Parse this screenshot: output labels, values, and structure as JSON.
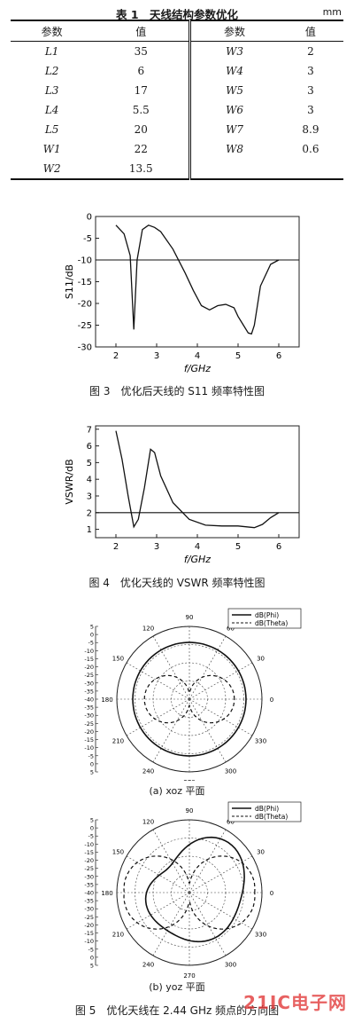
{
  "table": {
    "title": "表 1　天线结构参数优化",
    "unit": "mm",
    "headers": [
      "参数",
      "值",
      "参数",
      "值"
    ],
    "rows": [
      {
        "p1": "L1",
        "v1": "35",
        "p2": "W3",
        "v2": "2"
      },
      {
        "p1": "L2",
        "v1": "6",
        "p2": "W4",
        "v2": "3"
      },
      {
        "p1": "L3",
        "v1": "17",
        "p2": "W5",
        "v2": "3"
      },
      {
        "p1": "L4",
        "v1": "5.5",
        "p2": "W6",
        "v2": "3"
      },
      {
        "p1": "L5",
        "v1": "20",
        "p2": "W7",
        "v2": "8.9"
      },
      {
        "p1": "W1",
        "v1": "22",
        "p2": "W8",
        "v2": "0.6"
      },
      {
        "p1": "W2",
        "v1": "13.5",
        "p2": "",
        "v2": ""
      }
    ]
  },
  "figure3": {
    "caption": "图 3　优化后天线的 S11 频率特性图"
  },
  "figure4": {
    "caption": "图 4　优化天线的 VSWR 频率特性图"
  },
  "figure5": {
    "caption": "图 5　优化天线在 2.44 GHz 频点的方向图",
    "sub_a": "(a) xoz 平面",
    "sub_b": "(b) yoz 平面"
  },
  "watermark": "21IC电子网",
  "chart_data": [
    {
      "type": "line",
      "xlabel": "f/GHz",
      "ylabel": "S11/dB",
      "xlim": [
        1.5,
        6.5
      ],
      "ylim": [
        -30,
        0
      ],
      "xticks": [
        2,
        3,
        4,
        5,
        6
      ],
      "yticks": [
        0,
        -5,
        -10,
        -15,
        -20,
        -25,
        -30
      ],
      "series": [
        {
          "x": [
            2.0,
            2.2,
            2.35,
            2.44,
            2.52,
            2.65,
            2.8,
            2.95,
            3.1,
            3.4,
            3.7,
            3.9,
            4.1,
            4.3,
            4.5,
            4.7,
            4.9,
            5.0,
            5.1,
            5.25,
            5.33,
            5.4,
            5.55,
            5.8,
            6.0
          ],
          "y": [
            -2,
            -4,
            -9,
            -26,
            -10,
            -3,
            -2,
            -2.5,
            -3.5,
            -7.5,
            -13,
            -17,
            -20.5,
            -21.5,
            -20.5,
            -20.2,
            -21,
            -23,
            -24.5,
            -26.8,
            -27,
            -25,
            -16,
            -11,
            -10
          ]
        },
        {
          "x": [
            1.5,
            6.5
          ],
          "y": [
            -10,
            -10
          ]
        }
      ]
    },
    {
      "type": "line",
      "xlabel": "f/GHz",
      "ylabel": "VSWR/dB",
      "xlim": [
        1.5,
        6.5
      ],
      "ylim": [
        0.5,
        7.2
      ],
      "xticks": [
        2,
        3,
        4,
        5,
        6
      ],
      "yticks": [
        1,
        2,
        3,
        4,
        5,
        6,
        7
      ],
      "series": [
        {
          "x": [
            2.0,
            2.15,
            2.3,
            2.44,
            2.55,
            2.7,
            2.85,
            2.95,
            3.1,
            3.4,
            3.8,
            4.2,
            4.6,
            5.0,
            5.4,
            5.6,
            5.8,
            6.0
          ],
          "y": [
            6.9,
            5.2,
            3.0,
            1.15,
            1.6,
            3.5,
            5.8,
            5.6,
            4.2,
            2.6,
            1.6,
            1.25,
            1.2,
            1.2,
            1.1,
            1.3,
            1.7,
            2.0
          ]
        },
        {
          "x": [
            1.5,
            6.5
          ],
          "y": [
            2,
            2
          ]
        }
      ]
    },
    {
      "type": "polar",
      "r_ticks": [
        5,
        0,
        -5,
        -10,
        -15,
        -20,
        -25,
        -30,
        -35,
        -40,
        -35,
        -30,
        -25,
        -20,
        -15,
        -10,
        -5,
        0,
        5
      ],
      "angle_ticks": [
        0,
        30,
        60,
        90,
        120,
        150,
        180,
        210,
        240,
        270,
        300,
        330
      ],
      "legend": [
        "dB(Phi)",
        "dB(Theta)"
      ],
      "legend_position": "top-right"
    },
    {
      "type": "polar",
      "r_ticks": [
        5,
        0,
        -5,
        -10,
        -15,
        -20,
        -25,
        -30,
        -35,
        -40,
        -35,
        -30,
        -25,
        -20,
        -15,
        -10,
        -5,
        0,
        5
      ],
      "angle_ticks": [
        0,
        30,
        60,
        90,
        120,
        150,
        180,
        210,
        240,
        270,
        300,
        330
      ],
      "legend": [
        "dB(Phi)",
        "dB(Theta)"
      ],
      "legend_position": "top-right"
    }
  ]
}
